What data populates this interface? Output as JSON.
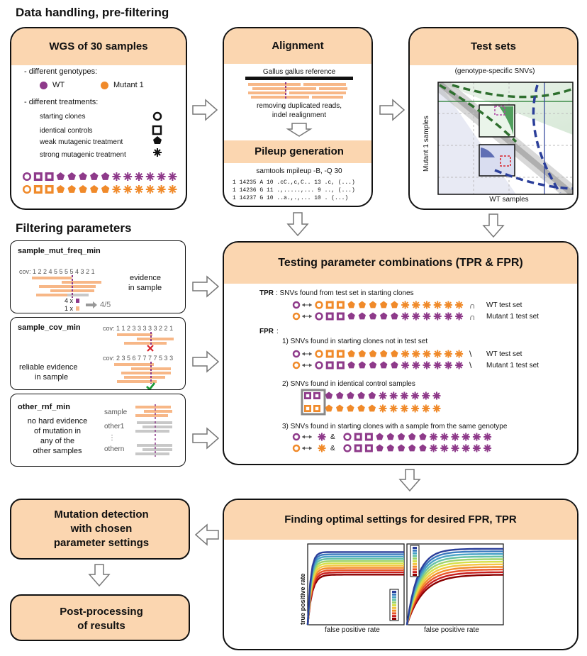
{
  "sections": {
    "data_handling": "Data handling, pre-filtering",
    "filtering": "Filtering parameters"
  },
  "wgs": {
    "title": "WGS of 30 samples",
    "genotypes_label": "- different genotypes:",
    "wt": "WT",
    "mutant": "Mutant 1",
    "treatments_label": "- different treatments:",
    "treatments": [
      "starting clones",
      "identical controls",
      "weak mutagenic treatment",
      "strong mutagenic treatment"
    ]
  },
  "alignment": {
    "title": "Alignment",
    "reference": "Gallus gallus reference",
    "removing": "removing duplicated reads,",
    "indel": "indel realignment"
  },
  "pileup": {
    "title": "Pileup generation",
    "command": "samtools mpileup -B, -Q 30",
    "lines": [
      "1 14235 A 10 .cC.,c,C.. 13 .c, (...)",
      "1 14236 G 11 .,.....,... 9 .., (...)",
      "1 14237 G 10 ..a.,.,... 10 . (...)"
    ]
  },
  "testsets": {
    "title": "Test sets",
    "subtitle": "(genotype-specific SNVs)",
    "ylabel": "Mutant 1 samples",
    "xlabel": "WT samples"
  },
  "params": {
    "p1": {
      "title": "sample_mut_freq_min",
      "cov": "cov: 1 2 2 4 5 5 5 5 4 3 2 1",
      "evidence1": "evidence",
      "evidence2": "in sample",
      "c1": "4 x",
      "c2": "1 x",
      "ratio": "4/5"
    },
    "p2": {
      "title": "sample_cov_min",
      "cov1": "cov: 1 1 2 3 3 3 3 3 2 2 1",
      "cov2": "cov:  2 3 5 6 7 7 7 7 5 3 3",
      "text1": "reliable evidence",
      "text2": "in sample"
    },
    "p3": {
      "title": "other_rnf_min",
      "t1": "no hard evidence",
      "t2": "of mutation in",
      "t3": "any of the",
      "t4": "other samples",
      "sample": "sample",
      "other1": "other1",
      "dots": "⋮",
      "othern": "othern"
    }
  },
  "testing": {
    "title": "Testing parameter combinations (TPR & FPR)",
    "tpr_label": "TPR",
    "tpr_desc": ": SNVs found from test set in starting clones",
    "fpr_label": "FPR",
    "fpr_colon": ":",
    "wt_test": "WT test set",
    "mut_test": "Mutant 1 test set",
    "cap": "∩",
    "minus": "\\",
    "f1": "1) SNVs found in starting clones not in test set",
    "f2": "2) SNVs found in identical control samples",
    "f3": "3) SNVs found in starting clones with a sample from the same genotype",
    "amp": "&"
  },
  "optimal": {
    "title": "Finding optimal settings for desired FPR, TPR",
    "ylabel": "true positive rate",
    "xlabel": "false positive rate"
  },
  "detection": {
    "l1": "Mutation detection",
    "l2": "with chosen",
    "l3": "parameter settings"
  },
  "post": {
    "l1": "Post-processing",
    "l2": "of results"
  },
  "colors": {
    "wt": "#8e3a8a",
    "mutant": "#f08a2a",
    "header": "#fbd6b0",
    "read": "#f7b787",
    "grey": "#c8c8c8"
  }
}
